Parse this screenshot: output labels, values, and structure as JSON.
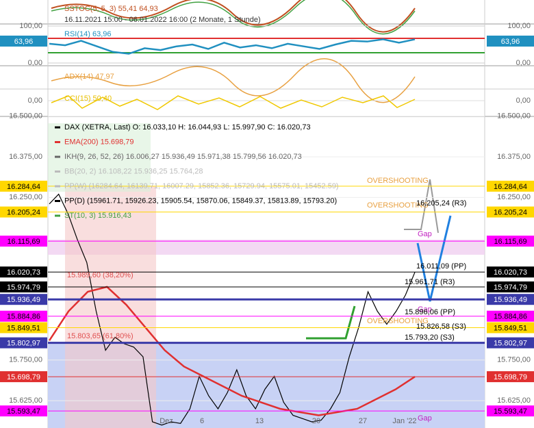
{
  "chart_data": {
    "type": "line",
    "header": "16.11.2021 15:00 - 06.01.2022 16:00  (2 Monate, 1 Stunde)",
    "panels": {
      "sstoc": "SSTOC(5, 5, 3)  55,41  64,93",
      "rsi": "RSI(14)  63,96",
      "rsi_last": "63,96",
      "rsi_ylim": [
        0,
        100
      ],
      "rsi_yticks": [
        {
          "value": 100,
          "label": "100,00"
        },
        {
          "value": 0,
          "label": "0,00"
        }
      ],
      "rsi_values": [
        52,
        48,
        60,
        45,
        30,
        25,
        40,
        35,
        45,
        50,
        38,
        55,
        42,
        48,
        40,
        52,
        45,
        38,
        50,
        60,
        58,
        64,
        55,
        63.96
      ],
      "adx": "ADX(14)  47,97",
      "cci": "CCI(15)  50,40",
      "cci_zero": "0,00"
    },
    "legend": [
      {
        "name": "DAX (XETRA, Last)   O: 16.033,10   H: 16.044,93   L: 15.997,90   C: 16.020,73",
        "color": "#000000"
      },
      {
        "name": "EMA(200)  15.698,79",
        "color": "#e03030"
      },
      {
        "name": "IKH(9, 26, 52, 26)  16.006,27   15.936,49   15.971,38   15.799,56   16.020,73",
        "color": "#666666"
      },
      {
        "name": "BB(20, 2)  16.108,22   15.936,25   15.764,28",
        "color": "#bbbbbb"
      },
      {
        "name": "PP(W)  (16284.64, 16139.71, 16007.29, 15852.36, 15729.94, 15575.01, 15452.59)",
        "color": "#bbbbbb"
      },
      {
        "name": "PP(D)  (15961.71, 15926.23, 15905.54, 15870.06, 15849.37, 15813.89, 15793.20)",
        "color": "#000000"
      },
      {
        "name": "ST(10, 3)  15.916,43",
        "color": "#40a040"
      }
    ],
    "ylim": [
      15541,
      16495
    ],
    "yticks": [
      {
        "value": 16500,
        "label": "16.500,00"
      },
      {
        "value": 16375,
        "label": "16.375,00"
      },
      {
        "value": 16250,
        "label": "16.250,00"
      },
      {
        "value": 15750,
        "label": "15.750,00"
      },
      {
        "value": 15625,
        "label": "15.625,00"
      }
    ],
    "levels": [
      {
        "value": 16284.64,
        "label": "16.284,64",
        "color": "#ffd700"
      },
      {
        "value": 16205.24,
        "label": "16.205,24",
        "color": "#ffd700"
      },
      {
        "value": 16115.69,
        "label": "16.115,69",
        "color": "#ff00ff"
      },
      {
        "value": 16020.73,
        "label": "16.020,73",
        "color": "#000000"
      },
      {
        "value": 15974.79,
        "label": "15.974,79",
        "color": "#000000"
      },
      {
        "value": 15936.49,
        "label": "15.936,49",
        "color": "#3a3aa8"
      },
      {
        "value": 15884.86,
        "label": "15.884,86",
        "color": "#ff00ff"
      },
      {
        "value": 15849.51,
        "label": "15.849,51",
        "color": "#ffd700"
      },
      {
        "value": 15802.97,
        "label": "15.802,97",
        "color": "#3a3aa8"
      },
      {
        "value": 15698.79,
        "label": "15.698,79",
        "color": "#e03030"
      },
      {
        "value": 15593.47,
        "label": "15.593,47",
        "color": "#ff00ff"
      }
    ],
    "x_labels": [
      "Dez",
      "6",
      "13",
      "20",
      "27",
      "Jan '22"
    ],
    "annotations": [
      "OVERSHOOTING",
      "OVERSHOOTING",
      "OVERSHOOTING",
      "Gap",
      "Gap",
      "Gap",
      "16.205,24 (R3)",
      "16.011,09 (PP)",
      "15.961,71 (R3)",
      "15.896,06 (PP)",
      "15.826,58 (S3)",
      "15.793,20 (S3)",
      "15.989,60 (38,20%)",
      "15.803,65 (61,80%)"
    ],
    "series": [
      {
        "name": "DAX",
        "color": "#000000",
        "values": [
          16230,
          16260,
          16200,
          16120,
          16050,
          15900,
          15780,
          15820,
          15800,
          15790,
          15760,
          15560,
          15550,
          15560,
          15555,
          15600,
          15700,
          15640,
          15600,
          15650,
          15720,
          15640,
          15600,
          15660,
          15700,
          15620,
          15580,
          15570,
          15560,
          15565,
          15600,
          15650,
          15760,
          15850,
          15960,
          15900,
          15860,
          15900,
          15950,
          16020
        ]
      },
      {
        "name": "EMA(200)",
        "color": "#e03030",
        "values": [
          15810,
          15900,
          15960,
          15975,
          15920,
          15850,
          15780,
          15730,
          15700,
          15670,
          15640,
          15620,
          15600,
          15590,
          15580,
          15590,
          15600,
          15630,
          15660,
          15698.79
        ]
      }
    ]
  }
}
